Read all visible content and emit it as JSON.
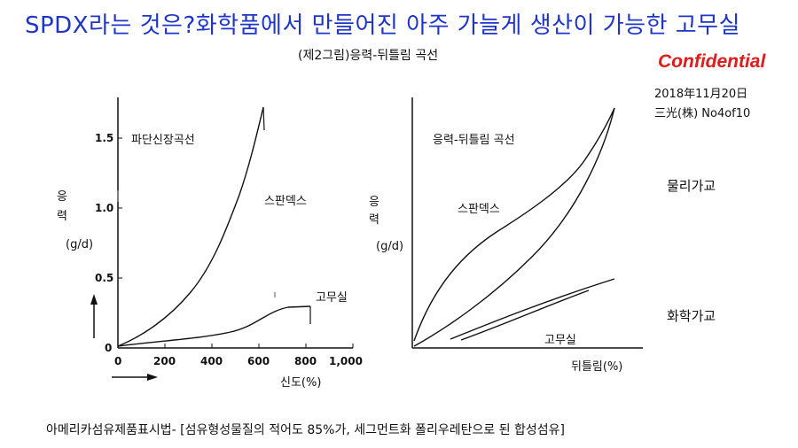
{
  "header": {
    "title": "SPDX라는 것은?화학품에서 만들어진 아주 가늘게 생산이 가능한 고무실",
    "subtitle": "(제2그림)응력-뒤틀림 곡선",
    "confidential": "Confidential",
    "date": "2018年11月20日",
    "company": "三光(株)  No4of10"
  },
  "left_chart": {
    "curve_title": "파단신장곡선",
    "ylabel_1": "응",
    "ylabel_2": "력",
    "ylabel_unit": "(g/d)",
    "xlabel": "신도(%)",
    "y_ticks": [
      "0",
      "0.5",
      "1.0",
      "1.5"
    ],
    "x_ticks": [
      "0",
      "200",
      "400",
      "600",
      "800",
      "1,000"
    ],
    "series_labels": [
      "스판덱스",
      "고무실"
    ]
  },
  "right_chart": {
    "curve_title": "응력-뒤틀림 곡선",
    "ylabel_1": "응",
    "ylabel_2": "력",
    "ylabel_unit": "(g/d)",
    "xlabel": "뒤틀림(%)",
    "series_labels": [
      "스판덱스",
      "고무실"
    ]
  },
  "side_labels": {
    "physical": "물리가교",
    "chemical": "화학가교"
  },
  "footnote": "아메리카섬유제품표시법- [섬유형성물질의 적어도 85%가, 세그먼트화 폴리우레탄으로 된 합성섬유]"
}
